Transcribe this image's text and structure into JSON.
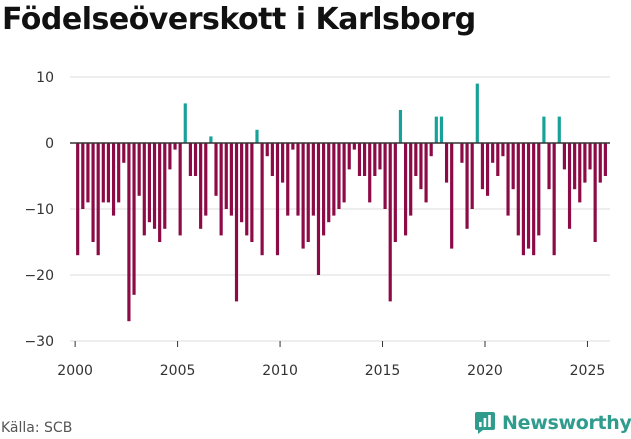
{
  "title": "Födelseöverskott i Karlsborg",
  "source": "Källa: SCB",
  "brand": {
    "name": "Newsworthy",
    "icon": "bar-chart-logo-icon"
  },
  "colors": {
    "negative": "#8c0a45",
    "positive": "#17a199",
    "grid": "#dddddd",
    "zero_line": "#333333",
    "brand": "#2f9c8e"
  },
  "chart_data": {
    "type": "bar",
    "title": "Födelseöverskott i Karlsborg",
    "xlabel": "",
    "ylabel": "",
    "ylim": [
      -30,
      10
    ],
    "xlim": [
      1999.75,
      2026.1
    ],
    "yticks": [
      10,
      0,
      -10,
      -20,
      -30
    ],
    "ytick_labels": [
      "10",
      "0",
      "−10",
      "−20",
      "−30"
    ],
    "xticks": [
      2000,
      2005,
      2010,
      2015,
      2020,
      2025
    ],
    "xtick_labels": [
      "2000",
      "2005",
      "2010",
      "2015",
      "2020",
      "2025"
    ],
    "frequency": "quarterly",
    "start": 2000,
    "values": [
      -17,
      -10,
      -9,
      -15,
      -17,
      -9,
      -9,
      -11,
      -9,
      -3,
      -27,
      -23,
      -8,
      -14,
      -12,
      -13,
      -15,
      -13,
      -4,
      -1,
      -14,
      6,
      -5,
      -5,
      -13,
      -11,
      1,
      -8,
      -14,
      -10,
      -11,
      -24,
      -12,
      -14,
      -15,
      2,
      -17,
      -2,
      -5,
      -17,
      -6,
      -11,
      -1,
      -11,
      -16,
      -15,
      -11,
      -20,
      -14,
      -12,
      -11,
      -10,
      -9,
      -4,
      -1,
      -5,
      -5,
      -9,
      -5,
      -4,
      -10,
      -24,
      -15,
      5,
      -14,
      -11,
      -5,
      -7,
      -9,
      -2,
      4,
      4,
      -6,
      -16,
      0,
      -3,
      -13,
      -10,
      9,
      -7,
      -8,
      -3,
      -5,
      -2,
      -11,
      -7,
      -14,
      -17,
      -16,
      -17,
      -14,
      4,
      -7,
      -17,
      4,
      -4,
      -13,
      -7,
      -9,
      -6,
      -4,
      -15,
      -6,
      -5
    ]
  }
}
